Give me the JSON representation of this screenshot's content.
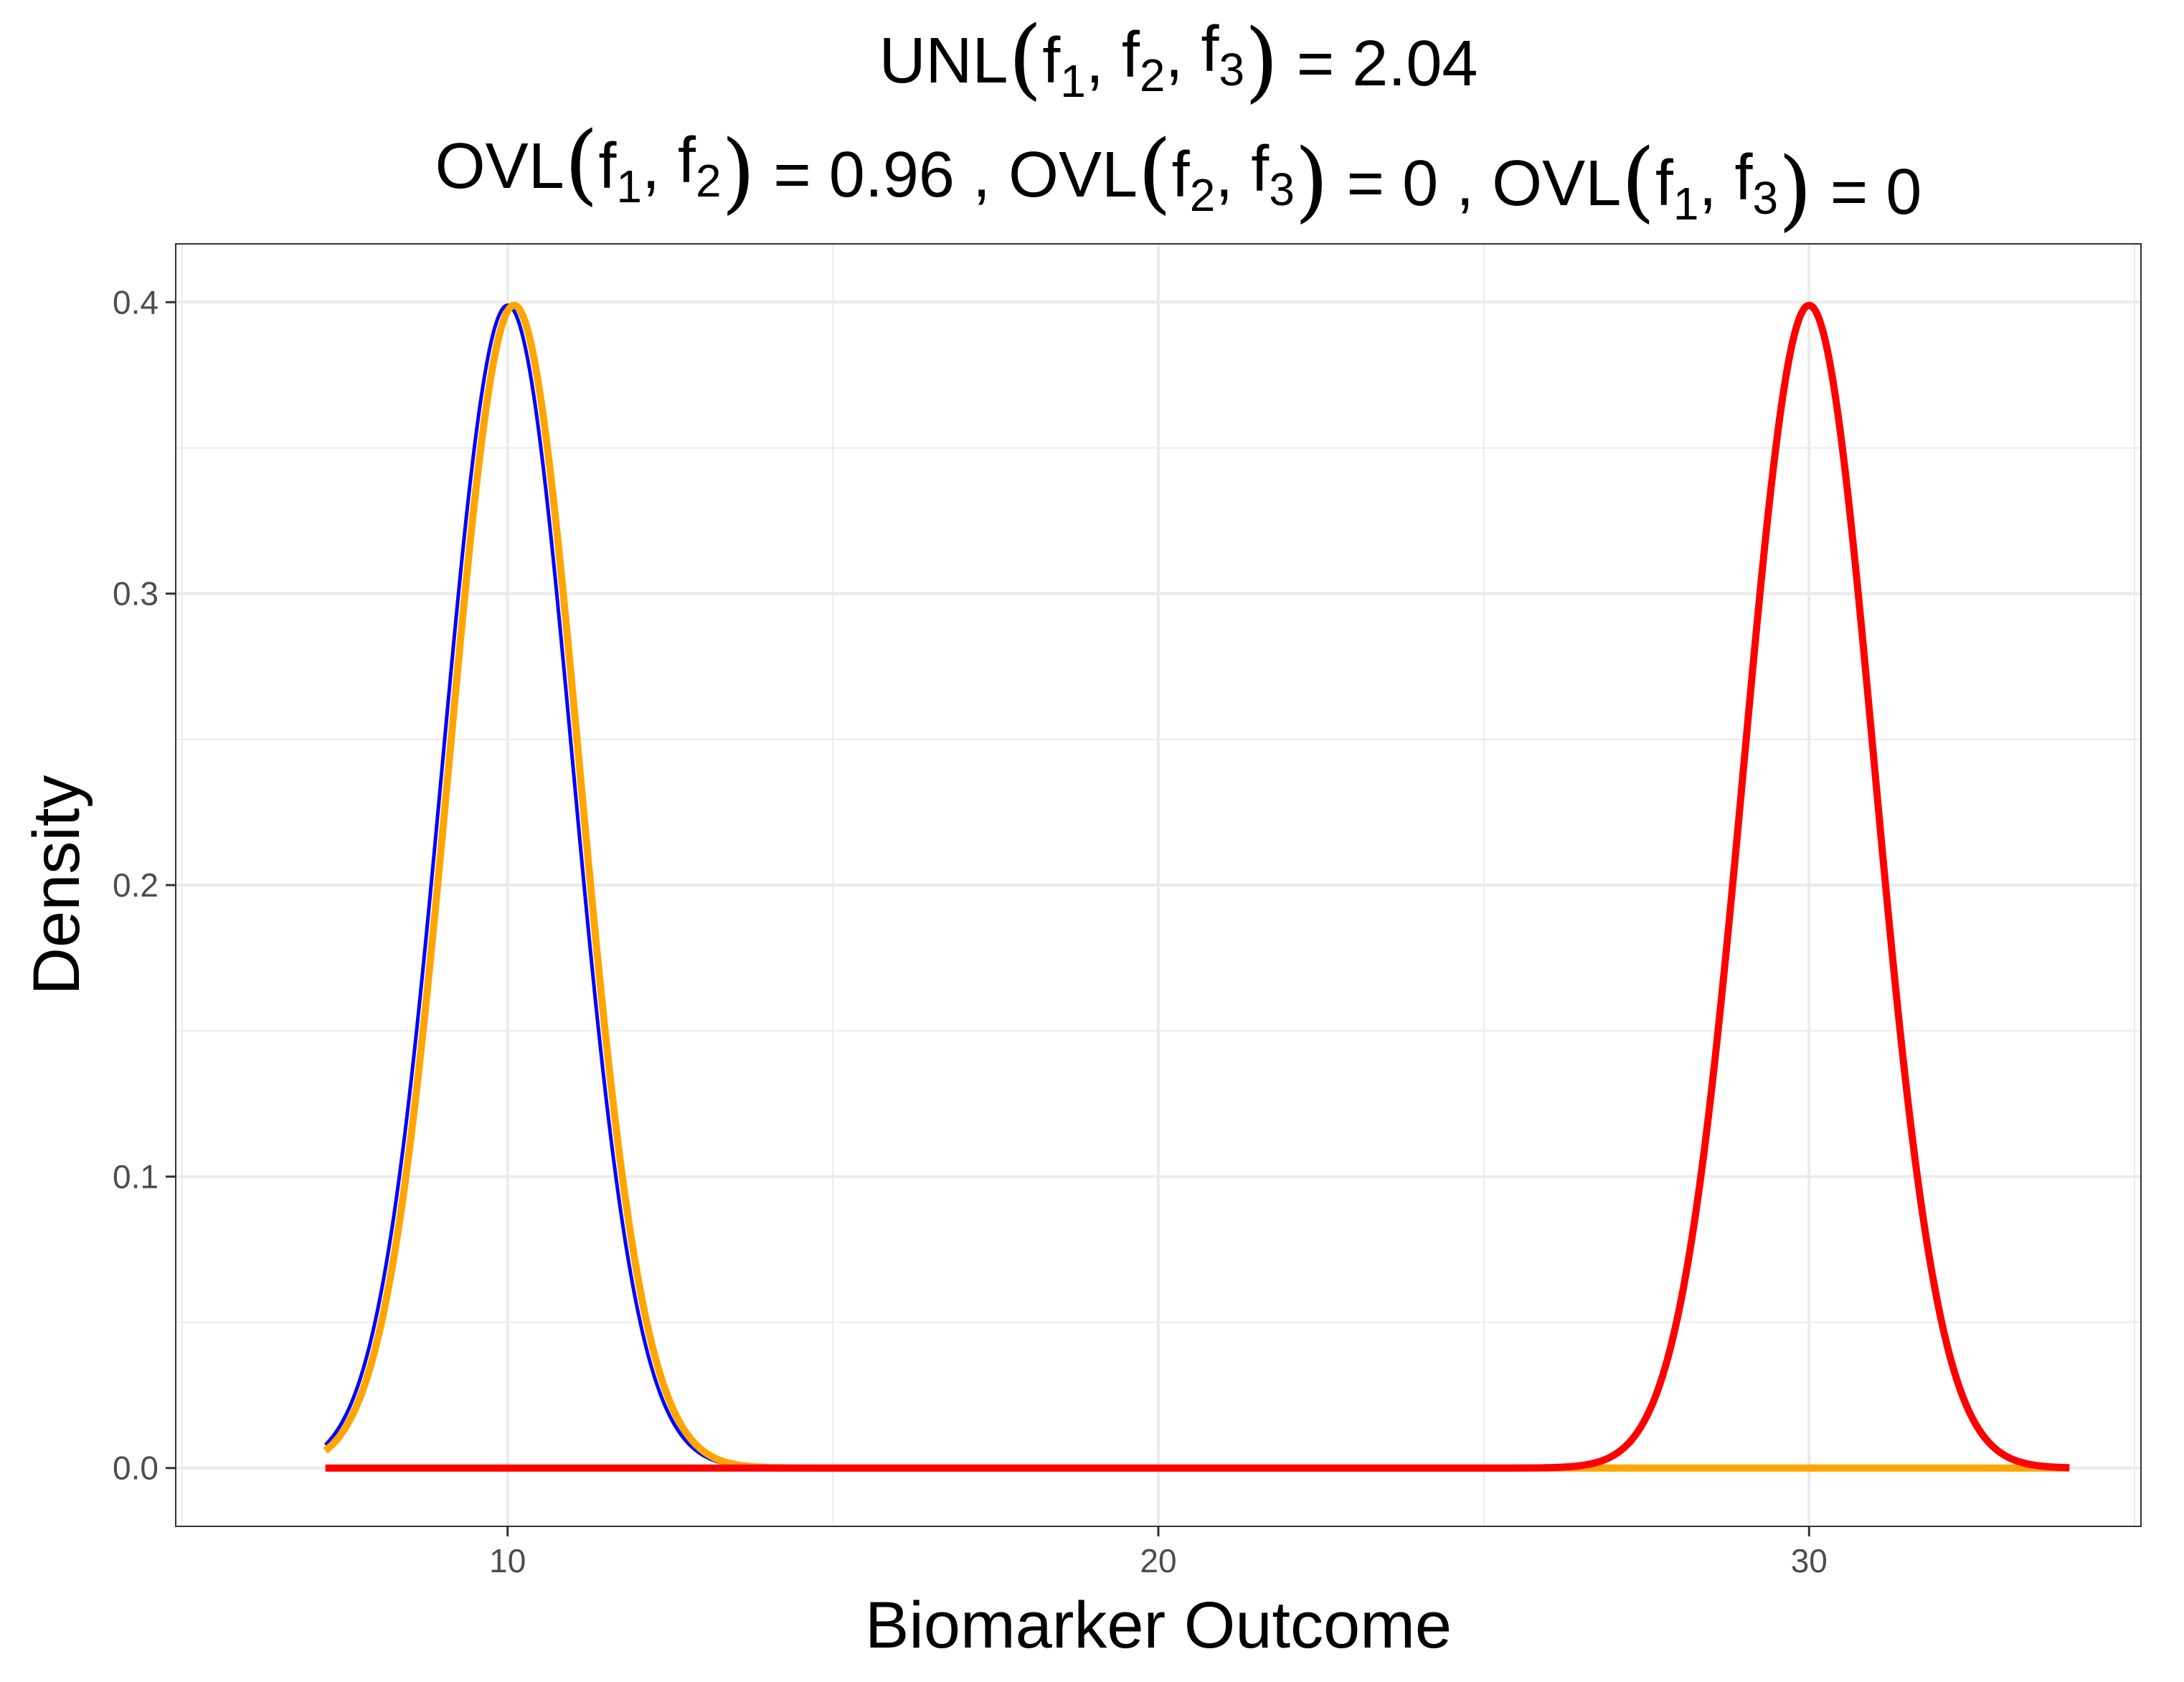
{
  "chart_data": {
    "type": "line",
    "title": {
      "line1": {
        "prefix": "UNL",
        "args": [
          {
            "base": "f",
            "sub": "1"
          },
          {
            "base": "f",
            "sub": "2"
          },
          {
            "base": "f",
            "sub": "3"
          }
        ],
        "value": "2.04"
      },
      "line2": [
        {
          "prefix": "OVL",
          "args": [
            {
              "base": "f",
              "sub": "1"
            },
            {
              "base": "f",
              "sub": "2"
            }
          ],
          "value": "0.96"
        },
        {
          "prefix": "OVL",
          "args": [
            {
              "base": "f",
              "sub": "2"
            },
            {
              "base": "f",
              "sub": "3"
            }
          ],
          "value": "0"
        },
        {
          "prefix": "OVL",
          "args": [
            {
              "base": "f",
              "sub": "1"
            },
            {
              "base": "f",
              "sub": "3"
            }
          ],
          "value": "0"
        }
      ]
    },
    "xlabel": "Biomarker Outcome",
    "ylabel": "Density",
    "xlim": [
      4.9,
      35.1
    ],
    "ylim": [
      -0.02,
      0.42
    ],
    "x_ticks": [
      10,
      20,
      30
    ],
    "x_tick_labels": [
      "10",
      "20",
      "30"
    ],
    "x_minor_ticks": [
      5,
      15,
      25,
      35
    ],
    "y_ticks": [
      0.0,
      0.1,
      0.2,
      0.3,
      0.4
    ],
    "y_tick_labels": [
      "0.0",
      "0.1",
      "0.2",
      "0.3",
      "0.4"
    ],
    "y_minor_ticks": [
      0.05,
      0.15,
      0.25,
      0.35
    ],
    "grid": true,
    "legend": "none",
    "x_range": [
      7.2,
      34
    ],
    "series": [
      {
        "distribution": "normal",
        "mean": 10.0,
        "sd": 1.0,
        "color": "#0000FF",
        "line_width": "thin"
      },
      {
        "distribution": "normal",
        "mean": 10.1,
        "sd": 1.0,
        "color": "#FFA500",
        "line_width": "thick"
      },
      {
        "distribution": "normal",
        "mean": 30.0,
        "sd": 1.0,
        "color": "#FF0000",
        "line_width": "thick"
      }
    ]
  }
}
